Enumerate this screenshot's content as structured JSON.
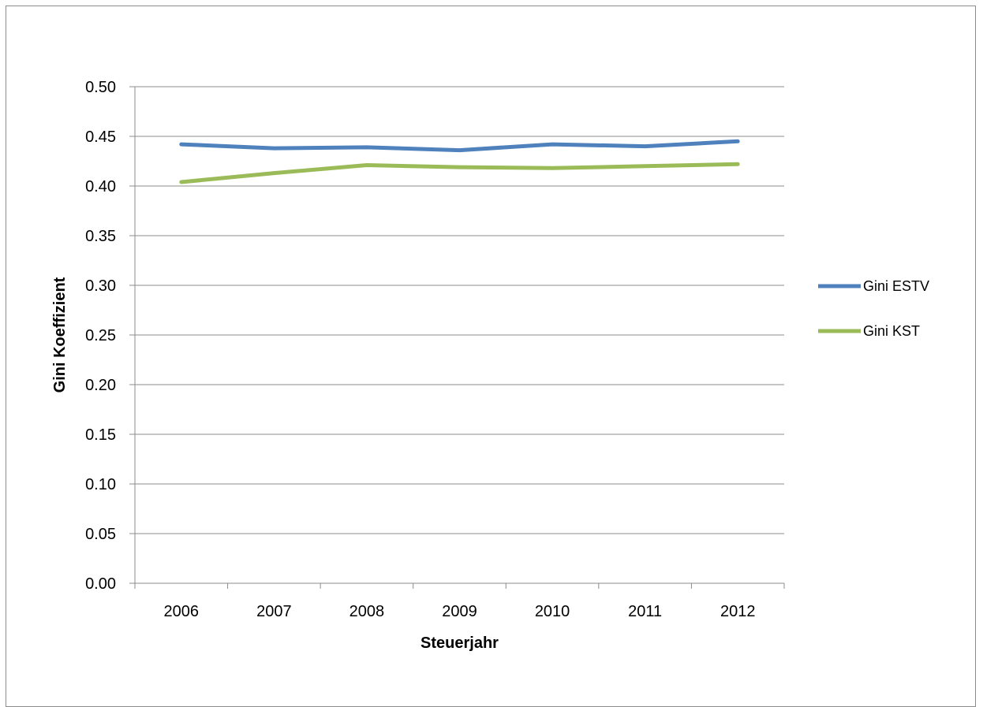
{
  "chart_data": {
    "type": "line",
    "title": "",
    "xlabel": "Steuerjahr",
    "ylabel": "Gini Koeffizient",
    "categories": [
      "2006",
      "2007",
      "2008",
      "2009",
      "2010",
      "2011",
      "2012"
    ],
    "ylim": [
      0,
      0.5
    ],
    "yticks": [
      "0.00",
      "0.05",
      "0.10",
      "0.15",
      "0.20",
      "0.25",
      "0.30",
      "0.35",
      "0.40",
      "0.45",
      "0.50"
    ],
    "grid": true,
    "legend_position": "right",
    "series": [
      {
        "name": "Gini ESTV",
        "color": "#4f81bd",
        "values": [
          0.442,
          0.438,
          0.439,
          0.436,
          0.442,
          0.44,
          0.445
        ]
      },
      {
        "name": "Gini KST",
        "color": "#9bbb59",
        "values": [
          0.404,
          0.413,
          0.421,
          0.419,
          0.418,
          0.42,
          0.422
        ]
      }
    ]
  }
}
